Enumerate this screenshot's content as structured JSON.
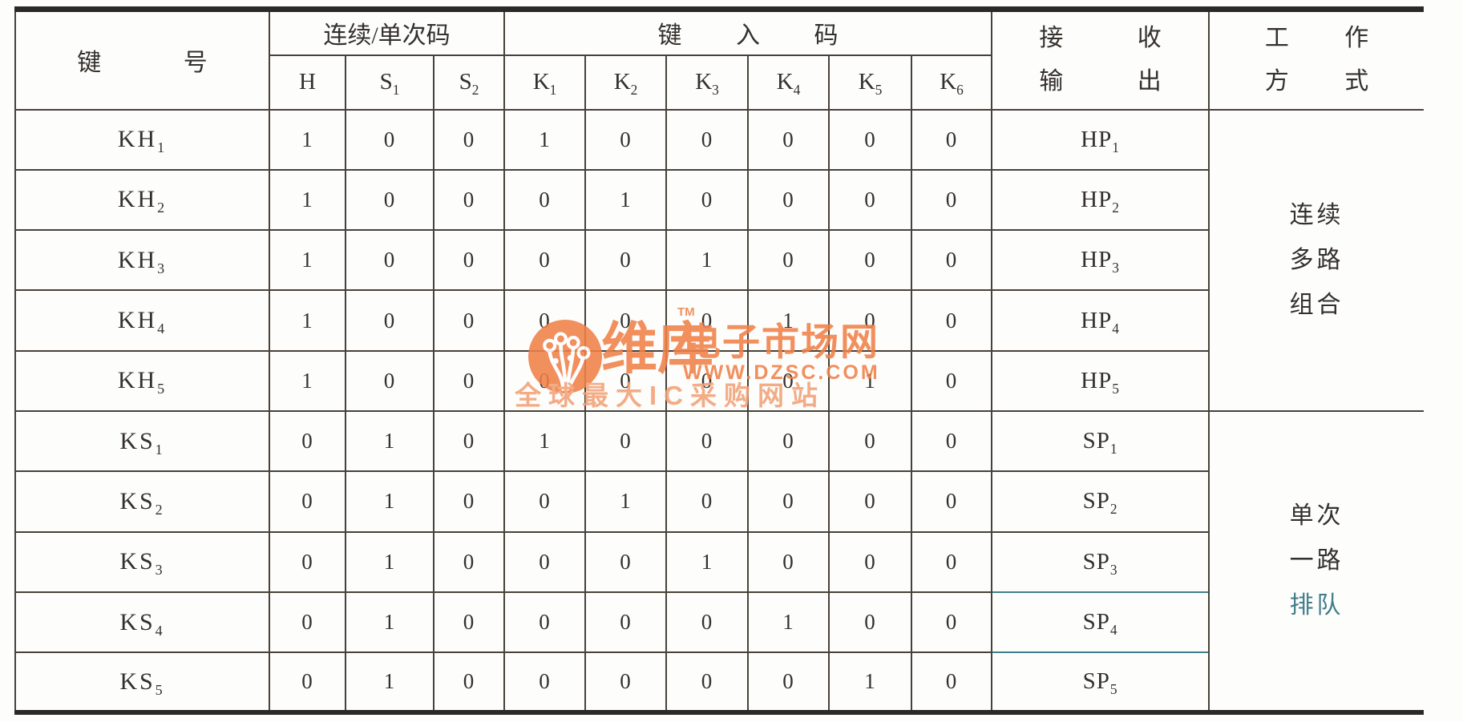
{
  "table": {
    "header": {
      "key_no": "键 号",
      "group_code": "连续/单次码",
      "key_in": "键 入 码",
      "receive_line1": "接 收",
      "receive_line2": "输 出",
      "mode_line1": "工 作",
      "mode_line2": "方 式",
      "h": {
        "base": "H",
        "sub": ""
      },
      "s1": {
        "base": "S",
        "sub": "1"
      },
      "s2": {
        "base": "S",
        "sub": "2"
      },
      "k1": {
        "base": "K",
        "sub": "1"
      },
      "k2": {
        "base": "K",
        "sub": "2"
      },
      "k3": {
        "base": "K",
        "sub": "3"
      },
      "k4": {
        "base": "K",
        "sub": "4"
      },
      "k5": {
        "base": "K",
        "sub": "5"
      },
      "k6": {
        "base": "K",
        "sub": "6"
      }
    },
    "rows": [
      {
        "label": {
          "base": "KH",
          "sub": "1"
        },
        "values": [
          "1",
          "0",
          "0",
          "1",
          "0",
          "0",
          "0",
          "0",
          "0"
        ],
        "output": {
          "base": "HP",
          "sub": "1"
        }
      },
      {
        "label": {
          "base": "KH",
          "sub": "2"
        },
        "values": [
          "1",
          "0",
          "0",
          "0",
          "1",
          "0",
          "0",
          "0",
          "0"
        ],
        "output": {
          "base": "HP",
          "sub": "2"
        }
      },
      {
        "label": {
          "base": "KH",
          "sub": "3"
        },
        "values": [
          "1",
          "0",
          "0",
          "0",
          "0",
          "1",
          "0",
          "0",
          "0"
        ],
        "output": {
          "base": "HP",
          "sub": "3"
        }
      },
      {
        "label": {
          "base": "KH",
          "sub": "4"
        },
        "values": [
          "1",
          "0",
          "0",
          "0",
          "0",
          "0",
          "1",
          "0",
          "0"
        ],
        "output": {
          "base": "HP",
          "sub": "4"
        }
      },
      {
        "label": {
          "base": "KH",
          "sub": "5"
        },
        "values": [
          "1",
          "0",
          "0",
          "0",
          "0",
          "0",
          "0",
          "1",
          "0"
        ],
        "output": {
          "base": "HP",
          "sub": "5"
        }
      },
      {
        "label": {
          "base": "KS",
          "sub": "1"
        },
        "values": [
          "0",
          "1",
          "0",
          "1",
          "0",
          "0",
          "0",
          "0",
          "0"
        ],
        "output": {
          "base": "SP",
          "sub": "1"
        }
      },
      {
        "label": {
          "base": "KS",
          "sub": "2"
        },
        "values": [
          "0",
          "1",
          "0",
          "0",
          "1",
          "0",
          "0",
          "0",
          "0"
        ],
        "output": {
          "base": "SP",
          "sub": "2"
        }
      },
      {
        "label": {
          "base": "KS",
          "sub": "3"
        },
        "values": [
          "0",
          "1",
          "0",
          "0",
          "0",
          "1",
          "0",
          "0",
          "0"
        ],
        "output": {
          "base": "SP",
          "sub": "3"
        }
      },
      {
        "label": {
          "base": "KS",
          "sub": "4"
        },
        "values": [
          "0",
          "1",
          "0",
          "0",
          "0",
          "0",
          "1",
          "0",
          "0"
        ],
        "output": {
          "base": "SP",
          "sub": "4"
        }
      },
      {
        "label": {
          "base": "KS",
          "sub": "5"
        },
        "values": [
          "0",
          "1",
          "0",
          "0",
          "0",
          "0",
          "0",
          "1",
          "0"
        ],
        "output": {
          "base": "SP",
          "sub": "5"
        }
      }
    ],
    "mode_groups": [
      {
        "rowspan": 5,
        "lines": [
          "连续",
          "多路",
          "组合"
        ],
        "line_colors": [
          null,
          null,
          null
        ]
      },
      {
        "rowspan": 5,
        "lines": [
          "单次",
          "一路",
          "排队"
        ],
        "line_colors": [
          null,
          null,
          "#3f7d8a"
        ]
      }
    ]
  },
  "scan_artifacts": {
    "teal_color": "#3e7f8c",
    "teal_border_after_rows": [
      7,
      8
    ]
  },
  "watermark": {
    "logo_icon": "circuit-tree-logo",
    "brand": "维库",
    "tm": "TM",
    "brand2": "电子市场网",
    "url": "WWW.DZSC.COM",
    "tagline": "全球最大IC采购网站",
    "color_orange": "#f08048",
    "color_light_orange": "#f2a176"
  }
}
